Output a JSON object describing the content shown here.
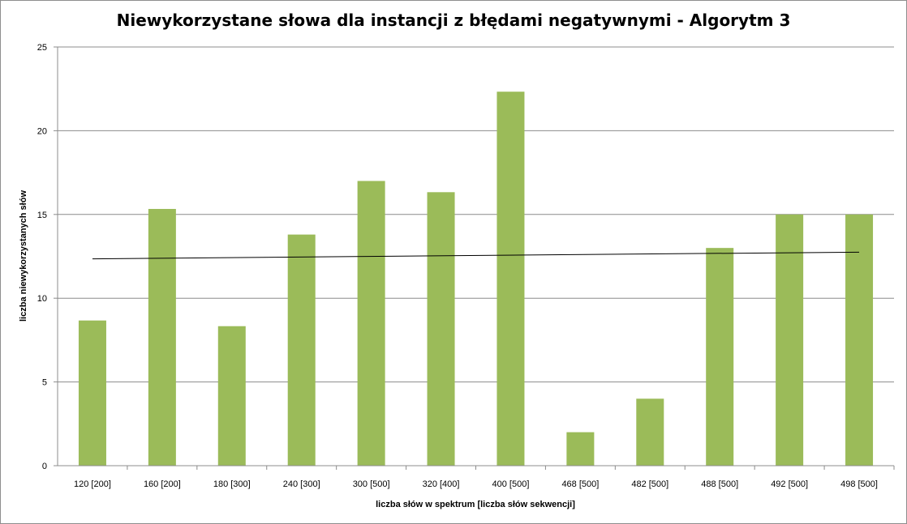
{
  "chart_data": {
    "type": "bar",
    "title": "Niewykorzystane słowa dla instancji z błędami negatywnymi - Algorytm 3",
    "xlabel": "liczba słów w spektrum [liczba  słów sekwencji]",
    "ylabel": "liczba niewykorzystanych  słów",
    "ylim": [
      0,
      25
    ],
    "yticks": [
      0,
      5,
      10,
      15,
      20,
      25
    ],
    "grid": true,
    "legend": "none",
    "categories": [
      "120 [200]",
      "160 [200]",
      "180 [300]",
      "240 [300]",
      "300 [500]",
      "320 [400]",
      "400 [500]",
      "468 [500]",
      "482 [500]",
      "488 [500]",
      "492 [500]",
      "498 [500]"
    ],
    "values": [
      8.67,
      15.33,
      8.33,
      13.8,
      17,
      16.33,
      22.33,
      2,
      4,
      13,
      15,
      15
    ],
    "trendline": {
      "type": "linear",
      "start": 12.35,
      "end": 12.75,
      "color": "#000000"
    },
    "colors": {
      "bar": "#9bbb59",
      "grid": "#8c8c8c",
      "axis": "#8c8c8c"
    }
  }
}
